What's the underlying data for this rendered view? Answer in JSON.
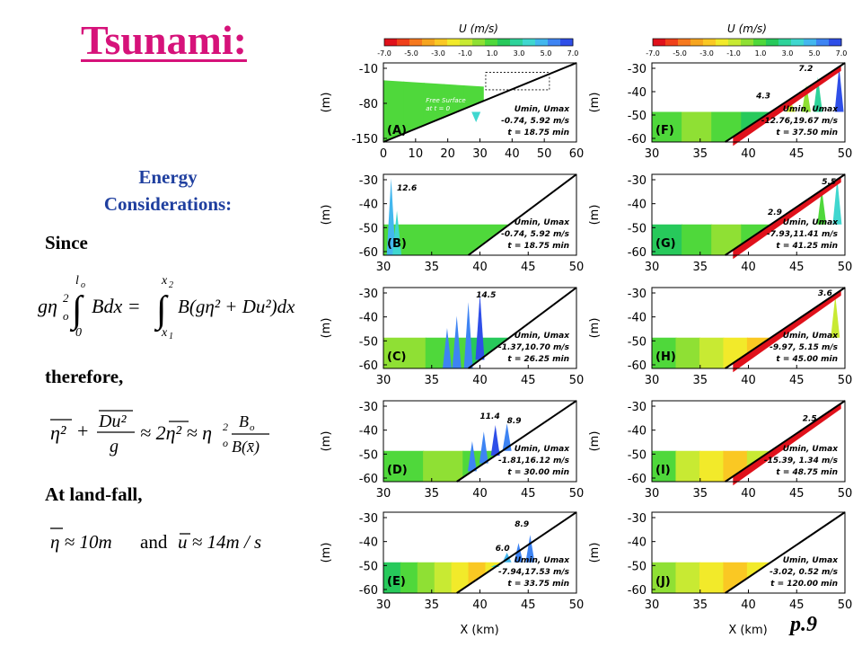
{
  "slide": {
    "title": "Tsunami:",
    "subtitle_line1": "Energy",
    "subtitle_line2": "Considerations:",
    "since": "Since",
    "therefore": "therefore,",
    "landfall": "At land-fall,",
    "page": "p.9"
  },
  "equations": {
    "eq1": {
      "lhs_pre": "gη",
      "lhs_sub": "o",
      "lhs_sup": "2",
      "int1_top": "l",
      "int1_top_sub": "o",
      "int1_bot": "0",
      "integrand1": "Bdx =",
      "int2_top": "x",
      "int2_top_sub": "2",
      "int2_bot": "x",
      "int2_bot_sub": "1",
      "integrand2": "B(gη² + Du²)dx"
    },
    "eq2": {
      "t1": "η²",
      "plus": "+",
      "frac_num": "Du²",
      "frac_den": "g",
      "approx1": "≈ 2η² ≈ η",
      "eta_sub": "o",
      "eta_sup": "2",
      "frac2_num": "B",
      "frac2_num_sub": "o",
      "frac2_den": "B(x̄)"
    },
    "eq3": {
      "a": "η ≈ 10m",
      "and": "and",
      "b": "u ≈ 14m / s"
    }
  },
  "chart_data": {
    "type": "area",
    "colorbar": {
      "title": "U (m/s)",
      "ticks": [
        "-7.0",
        "-5.0",
        "-3.0",
        "-1.0",
        "1.0",
        "3.0",
        "5.0",
        "7.0"
      ],
      "colors": [
        "#e0111b",
        "#f0401a",
        "#f6791e",
        "#f6a51f",
        "#fac823",
        "#f2ea2a",
        "#c8ea33",
        "#8fe034",
        "#4fd83b",
        "#27c95b",
        "#2ed39a",
        "#3fd7cf",
        "#43b7ee",
        "#3e84f3",
        "#2f4fe8"
      ]
    },
    "y_label": "(m)",
    "x_label": "X (km)",
    "panels": [
      {
        "id": "A",
        "label": "(A)",
        "xticks": [
          "0",
          "10",
          "20",
          "30",
          "40",
          "50",
          "60"
        ],
        "yticks": [
          "-10",
          "-80",
          "-150"
        ],
        "umin_umax": "-0.74, 5.92 m/s",
        "t": "18.75 min",
        "annotation": "Free Surface\nat t = 0",
        "peaks": [],
        "inset": true,
        "scheme": "init"
      },
      {
        "id": "B",
        "label": "(B)",
        "xticks": [
          "30",
          "35",
          "40",
          "45",
          "50"
        ],
        "yticks": [
          "-30",
          "-40",
          "-50",
          "-60"
        ],
        "umin_umax": "-0.74, 5.92 m/s",
        "t": "18.75 min",
        "annotation": "",
        "peaks": [
          {
            "label": "12.6"
          }
        ],
        "scheme": "B"
      },
      {
        "id": "C",
        "label": "(C)",
        "xticks": [
          "30",
          "35",
          "40",
          "45",
          "50"
        ],
        "yticks": [
          "-30",
          "-40",
          "-50",
          "-60"
        ],
        "umin_umax": "-1.37,10.70 m/s",
        "t": "26.25 min",
        "annotation": "",
        "peaks": [
          {
            "label": "14.5"
          }
        ],
        "scheme": "C"
      },
      {
        "id": "D",
        "label": "(D)",
        "xticks": [
          "30",
          "35",
          "40",
          "45",
          "50"
        ],
        "yticks": [
          "-30",
          "-40",
          "-50",
          "-60"
        ],
        "umin_umax": "-1.81,16.12 m/s",
        "t": "30.00 min",
        "annotation": "",
        "peaks": [
          {
            "label": "11.4"
          },
          {
            "label": "8.9"
          }
        ],
        "scheme": "D"
      },
      {
        "id": "E",
        "label": "(E)",
        "xticks": [
          "30",
          "35",
          "40",
          "45",
          "50"
        ],
        "yticks": [
          "-30",
          "-40",
          "-50",
          "-60"
        ],
        "umin_umax": "-7.94,17.53 m/s",
        "t": "33.75 min",
        "annotation": "",
        "peaks": [
          {
            "label": "6.0"
          },
          {
            "label": "8.9"
          }
        ],
        "scheme": "E"
      },
      {
        "id": "F",
        "label": "(F)",
        "xticks": [
          "30",
          "35",
          "40",
          "45",
          "50"
        ],
        "yticks": [
          "-30",
          "-40",
          "-50",
          "-60"
        ],
        "umin_umax": "-12.76,19.67 m/s",
        "t": "37.50 min",
        "annotation": "",
        "peaks": [
          {
            "label": "4.3"
          },
          {
            "label": "7.2"
          }
        ],
        "scheme": "F"
      },
      {
        "id": "G",
        "label": "(G)",
        "xticks": [
          "30",
          "35",
          "40",
          "45",
          "50"
        ],
        "yticks": [
          "-30",
          "-40",
          "-50",
          "-60"
        ],
        "umin_umax": "-7.93,11.41 m/s",
        "t": "41.25 min",
        "annotation": "",
        "peaks": [
          {
            "label": "2.9"
          },
          {
            "label": "5.5"
          }
        ],
        "scheme": "G"
      },
      {
        "id": "H",
        "label": "(H)",
        "xticks": [
          "30",
          "35",
          "40",
          "45",
          "50"
        ],
        "yticks": [
          "-30",
          "-40",
          "-50",
          "-60"
        ],
        "umin_umax": "-9.97, 5.15 m/s",
        "t": "45.00 min",
        "annotation": "",
        "peaks": [
          {
            "label": "3.6"
          }
        ],
        "scheme": "H"
      },
      {
        "id": "I",
        "label": "(I)",
        "xticks": [
          "30",
          "35",
          "40",
          "45",
          "50"
        ],
        "yticks": [
          "-30",
          "-40",
          "-50",
          "-60"
        ],
        "umin_umax": "-15.39, 1.34 m/s",
        "t": "48.75 min",
        "annotation": "",
        "peaks": [
          {
            "label": "2.5"
          }
        ],
        "scheme": "I"
      },
      {
        "id": "J",
        "label": "(J)",
        "xticks": [
          "30",
          "35",
          "40",
          "45",
          "50"
        ],
        "yticks": [
          "-30",
          "-40",
          "-50",
          "-60"
        ],
        "umin_umax": "-3.02, 0.52 m/s",
        "t": "120.00 min",
        "annotation": "",
        "peaks": [],
        "scheme": "J"
      }
    ],
    "legend_text": "Umin, Umax",
    "time_prefix": "t ="
  }
}
